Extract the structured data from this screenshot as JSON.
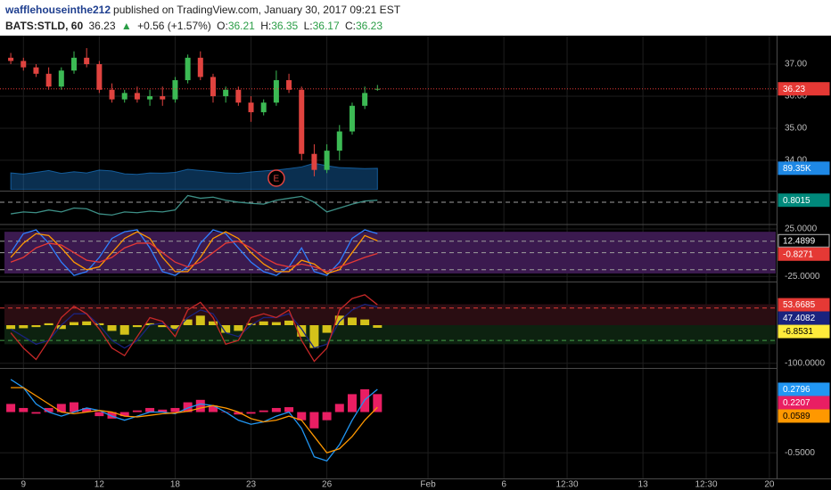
{
  "header": {
    "author": "wafflehouseinthe212",
    "byline": "published on TradingView.com, January 30, 2017 09:21 EST",
    "symbol": "BATS:STLD, 60",
    "price": "36.23",
    "arrow": "▲",
    "change": "+0.56 (+1.57%)",
    "ohlc": [
      {
        "key": "O:",
        "value": "36.21"
      },
      {
        "key": "H:",
        "value": "36.35"
      },
      {
        "key": "L:",
        "value": "36.17"
      },
      {
        "key": "C:",
        "value": "36.23"
      }
    ]
  },
  "chart_data": [
    {
      "type": "candlestick",
      "grid": true,
      "up_color": "#3cba54",
      "down_color": "#e0433f",
      "x": [
        0,
        1,
        2,
        3,
        4,
        5,
        6,
        7,
        8,
        9,
        10,
        11,
        12,
        13,
        14,
        15,
        16,
        17,
        18,
        19,
        20,
        21,
        22,
        23,
        24,
        25,
        26,
        27,
        28,
        29
      ],
      "xlim": [
        -0.5,
        60.5
      ],
      "xticks": [
        {
          "value": 1,
          "label": "9"
        },
        {
          "value": 7,
          "label": "12"
        },
        {
          "value": 13,
          "label": "18"
        },
        {
          "value": 19,
          "label": "23"
        },
        {
          "value": 25,
          "label": "26"
        },
        {
          "value": 33,
          "label": "Feb"
        },
        {
          "value": 39,
          "label": "6"
        },
        {
          "value": 44,
          "label": "12:30"
        },
        {
          "value": 50,
          "label": "13"
        },
        {
          "value": 55,
          "label": "12:30"
        },
        {
          "value": 60,
          "label": "20"
        }
      ],
      "open": [
        37.2,
        37.1,
        36.9,
        36.7,
        36.3,
        36.8,
        37.2,
        37.0,
        36.2,
        35.9,
        36.1,
        35.9,
        36.0,
        35.9,
        36.5,
        37.2,
        36.6,
        36.0,
        36.2,
        35.8,
        35.5,
        35.8,
        36.5,
        36.2,
        34.2,
        33.7,
        34.3,
        34.9,
        35.7,
        36.21
      ],
      "high": [
        37.35,
        37.2,
        37.0,
        36.9,
        36.9,
        37.4,
        37.5,
        37.1,
        36.4,
        36.2,
        36.3,
        36.2,
        36.3,
        36.6,
        37.3,
        37.4,
        36.7,
        36.3,
        36.3,
        36.0,
        35.9,
        36.8,
        36.7,
        36.3,
        34.5,
        34.5,
        35.1,
        35.8,
        36.3,
        36.35
      ],
      "low": [
        37.0,
        36.8,
        36.6,
        36.2,
        36.2,
        36.7,
        36.9,
        36.1,
        35.8,
        35.8,
        35.8,
        35.7,
        35.7,
        35.8,
        36.4,
        36.5,
        35.8,
        35.8,
        35.7,
        35.2,
        35.4,
        35.7,
        36.1,
        34.0,
        33.5,
        33.6,
        34.0,
        34.8,
        35.6,
        36.17
      ],
      "close": [
        37.1,
        36.9,
        36.7,
        36.3,
        36.8,
        37.2,
        37.0,
        36.2,
        35.9,
        36.1,
        35.9,
        36.0,
        35.9,
        36.5,
        37.2,
        36.6,
        36.0,
        36.2,
        35.8,
        35.5,
        35.8,
        36.5,
        36.2,
        34.2,
        33.7,
        34.3,
        34.9,
        35.7,
        36.1,
        36.23
      ],
      "price_line_color": "#e53935",
      "ylim": [
        33.08,
        37.89
      ],
      "yticks": [
        {
          "value": 34,
          "label": "34.00"
        },
        {
          "value": 35,
          "label": "35.00"
        },
        {
          "value": 36,
          "label": "36.00"
        },
        {
          "value": 37,
          "label": "37.00"
        }
      ],
      "volume": {
        "color": "#1e88e5",
        "ylim": [
          0,
          640000
        ],
        "values": [
          70000,
          65000,
          72000,
          80000,
          68000,
          75000,
          70000,
          82000,
          78000,
          66000,
          64000,
          70000,
          69000,
          72000,
          85000,
          80000,
          76000,
          70000,
          68000,
          74000,
          78000,
          82000,
          88000,
          95000,
          110000,
          100000,
          92000,
          90000,
          88000,
          89350
        ],
        "value_labels": [
          null,
          null,
          null,
          null,
          null,
          null,
          null,
          null,
          null,
          null,
          null,
          null,
          null,
          null,
          null,
          null,
          null,
          null,
          null,
          null,
          null,
          null,
          null,
          null,
          null,
          null,
          null,
          null,
          null,
          "89.35K"
        ]
      },
      "annotations": [
        {
          "x": 21,
          "text": "E",
          "color": "#e0433f"
        }
      ]
    },
    {
      "type": "indicator",
      "ylim": [
        0.2,
        1.0
      ],
      "levels": [
        {
          "value": 0.75,
          "color": "#9e9e9e"
        }
      ],
      "series": [
        {
          "kind": "line",
          "color": "#3d8f86",
          "label_color": "#00897b",
          "values": [
            0.45,
            0.5,
            0.48,
            0.55,
            0.5,
            0.6,
            0.58,
            0.45,
            0.42,
            0.5,
            0.48,
            0.52,
            0.5,
            0.55,
            0.92,
            0.85,
            0.88,
            0.8,
            0.75,
            0.72,
            0.7,
            0.8,
            0.85,
            0.9,
            0.75,
            0.5,
            0.6,
            0.7,
            0.78,
            0.8015
          ]
        }
      ]
    },
    {
      "type": "indicator",
      "ylim": [
        -29.5,
        28.7
      ],
      "bands": [
        {
          "from": -22,
          "to": 22,
          "color": "#3b1a4f"
        }
      ],
      "levels": [
        {
          "value": 12,
          "color": "#9e9e9e"
        },
        {
          "value": 0,
          "color": "#9e9e9e"
        },
        {
          "value": -18,
          "color": "#9e9e9e"
        }
      ],
      "yticks": [
        {
          "value": 25,
          "label": "25.0000"
        },
        {
          "value": -25,
          "label": "-25.0000"
        }
      ],
      "series": [
        {
          "kind": "line",
          "color": "#2f7fff",
          "values": [
            0,
            20,
            24,
            10,
            -10,
            -24,
            -20,
            -5,
            15,
            22,
            24,
            5,
            -20,
            -24,
            -15,
            10,
            24,
            20,
            5,
            -10,
            -20,
            -24,
            -15,
            5,
            -20,
            -24,
            -10,
            15,
            24,
            20
          ]
        },
        {
          "kind": "line",
          "color": "#ff9800",
          "label_color": "#000000",
          "values": [
            -5,
            10,
            20,
            18,
            5,
            -10,
            -18,
            -15,
            0,
            15,
            22,
            15,
            -5,
            -20,
            -20,
            -5,
            15,
            22,
            15,
            0,
            -12,
            -20,
            -20,
            -8,
            -12,
            -22,
            -18,
            0,
            18,
            12.4899
          ]
        },
        {
          "kind": "line",
          "color": "#e53935",
          "label_color": "#e53935",
          "values": [
            -10,
            -5,
            5,
            10,
            8,
            0,
            -8,
            -10,
            -5,
            5,
            10,
            10,
            0,
            -10,
            -15,
            -10,
            0,
            10,
            12,
            5,
            -5,
            -12,
            -15,
            -12,
            -15,
            -20,
            -15,
            -10,
            -5,
            -0.8271
          ]
        }
      ]
    },
    {
      "type": "indicator",
      "ylim": [
        -110,
        110
      ],
      "bands": [
        {
          "from": 0,
          "to": 55,
          "color": "#2a0d12"
        },
        {
          "from": -50,
          "to": 0,
          "color": "#0d2210"
        }
      ],
      "levels": [
        {
          "value": 45,
          "color": "#e53935"
        },
        {
          "value": -40,
          "color": "#43a047"
        }
      ],
      "yticks": [
        {
          "value": -100,
          "label": "-100.0000"
        }
      ],
      "series": [
        {
          "kind": "histogram",
          "color": "#d4c21a",
          "label_color": "#ffeb3b",
          "values": [
            -10,
            -8,
            -5,
            5,
            -10,
            8,
            10,
            5,
            -15,
            -25,
            -5,
            5,
            -5,
            -10,
            15,
            25,
            10,
            -20,
            -15,
            5,
            10,
            8,
            12,
            -30,
            -60,
            -20,
            25,
            20,
            15,
            -6.8531
          ]
        },
        {
          "kind": "line",
          "color": "#1a237e",
          "label_color": "#1a237e",
          "values": [
            -10,
            -30,
            -50,
            -40,
            0,
            30,
            30,
            0,
            -40,
            -60,
            -40,
            0,
            5,
            -15,
            20,
            40,
            30,
            -20,
            -30,
            0,
            20,
            20,
            30,
            -10,
            -60,
            -50,
            10,
            40,
            55,
            47.4082
          ]
        },
        {
          "kind": "line",
          "color": "#c62828",
          "label_color": "#e53935",
          "values": [
            -20,
            -60,
            -90,
            -40,
            20,
            50,
            30,
            -10,
            -60,
            -80,
            -30,
            20,
            10,
            -30,
            40,
            60,
            20,
            -50,
            -40,
            20,
            30,
            20,
            40,
            -40,
            -95,
            -60,
            40,
            70,
            80,
            53.6685
          ]
        }
      ]
    },
    {
      "type": "indicator",
      "ylim": [
        -0.815,
        0.52
      ],
      "yticks": [
        {
          "value": -0.5,
          "label": "-0.5000"
        }
      ],
      "series": [
        {
          "kind": "histogram",
          "color": "#e91e63",
          "label_color": "#e91e63",
          "values": [
            0.1,
            0.05,
            -0.02,
            0.05,
            0.1,
            0.12,
            0.05,
            -0.05,
            -0.08,
            -0.05,
            0.02,
            0.05,
            0.03,
            0.05,
            0.12,
            0.15,
            0.08,
            0,
            -0.03,
            -0.02,
            0.02,
            0.05,
            0.06,
            -0.1,
            -0.2,
            -0.1,
            0.1,
            0.22,
            0.28,
            0.2207
          ]
        },
        {
          "kind": "line",
          "color": "#2196f3",
          "label_color": "#2196f3",
          "values": [
            0.4,
            0.3,
            0.1,
            0,
            -0.05,
            0,
            0.05,
            0.02,
            -0.05,
            -0.1,
            -0.05,
            0,
            0,
            -0.02,
            0.05,
            0.1,
            0.08,
            0,
            -0.1,
            -0.15,
            -0.12,
            -0.05,
            0,
            -0.2,
            -0.55,
            -0.6,
            -0.4,
            -0.1,
            0.15,
            0.2796
          ]
        },
        {
          "kind": "line",
          "color": "#ff9800",
          "label_color": "#ff9800",
          "values": [
            0.3,
            0.3,
            0.2,
            0.1,
            0,
            -0.02,
            0,
            0.02,
            0,
            -0.05,
            -0.06,
            -0.04,
            -0.02,
            -0.01,
            0.01,
            0.05,
            0.08,
            0.05,
            0,
            -0.08,
            -0.12,
            -0.1,
            -0.05,
            -0.1,
            -0.3,
            -0.5,
            -0.45,
            -0.3,
            -0.1,
            0.0589
          ]
        }
      ]
    }
  ]
}
